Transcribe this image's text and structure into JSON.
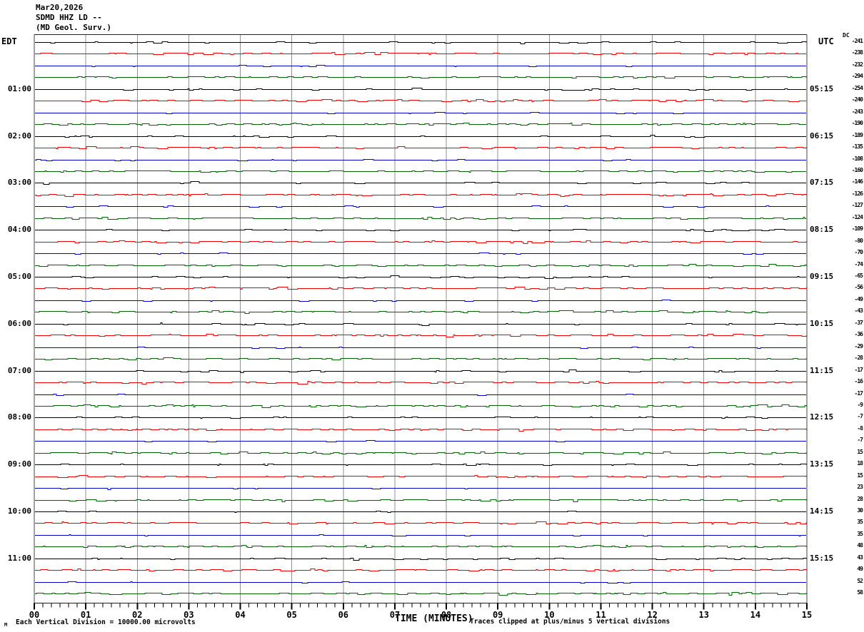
{
  "header": {
    "date": "Mar20,2026",
    "station": "SDMD HHZ LD --",
    "network": "(MD Geol. Surv.)"
  },
  "axis_headers": {
    "left": "EDT",
    "right": "UTC",
    "dc": "DC"
  },
  "x_axis": {
    "title": "TIME (MINUTES)",
    "tick_labels": [
      "00",
      "01",
      "02",
      "03",
      "04",
      "05",
      "06",
      "07",
      "08",
      "09",
      "10",
      "11",
      "12",
      "13",
      "14",
      "15"
    ],
    "minor_ticks_per_minute": 6
  },
  "footer": {
    "scale_note": "Each Vertical Division = 10000.00 microvolts",
    "clip_note": "Traces clipped at plus/minus 5 vertical divisions",
    "corner_mark": "M"
  },
  "colors": {
    "trace_cycle": [
      "#000000",
      "#ee0000",
      "#0000cc",
      "#006400"
    ],
    "grid": "#909090",
    "border": "#444444",
    "text": "#000000",
    "background": "#ffffff"
  },
  "chart_data": {
    "type": "line",
    "description": "12-hour helicorder seismogram: 48 trace rows of 15 minutes each, quiet background noise; trace colors cycle black/red/blue/green for :00/:15/:30/:45 quarter-hours",
    "row_count": 48,
    "start_time_edt": "00:00",
    "utc_offset_hours": 4,
    "x_range_minutes": [
      0,
      15
    ],
    "left_labels_edt": [
      "01:00",
      "02:00",
      "03:00",
      "04:00",
      "05:00",
      "06:00",
      "07:00",
      "08:00",
      "09:00",
      "10:00",
      "11:00"
    ],
    "right_labels_utc": [
      "05:15",
      "06:15",
      "07:15",
      "08:15",
      "09:15",
      "10:15",
      "11:15",
      "12:15",
      "13:15",
      "14:15",
      "15:15"
    ],
    "dc_offsets": [
      -241,
      -238,
      -232,
      -294,
      -254,
      -240,
      -243,
      -190,
      -189,
      -135,
      -108,
      -160,
      -146,
      -126,
      -127,
      -124,
      -109,
      -80,
      -70,
      -74,
      -65,
      -56,
      -49,
      -43,
      -37,
      -36,
      -29,
      -28,
      -17,
      -16,
      -17,
      -9,
      -7,
      -8,
      -7,
      15,
      18,
      15,
      23,
      28,
      30,
      35,
      35,
      48,
      43,
      49,
      52,
      58
    ],
    "event": {
      "row_edt": "09:15",
      "row_utc": "13:15",
      "row_index": 37,
      "note": "slight smooth baseline step-up on red trace between minute 7.2 and 8.5"
    }
  }
}
